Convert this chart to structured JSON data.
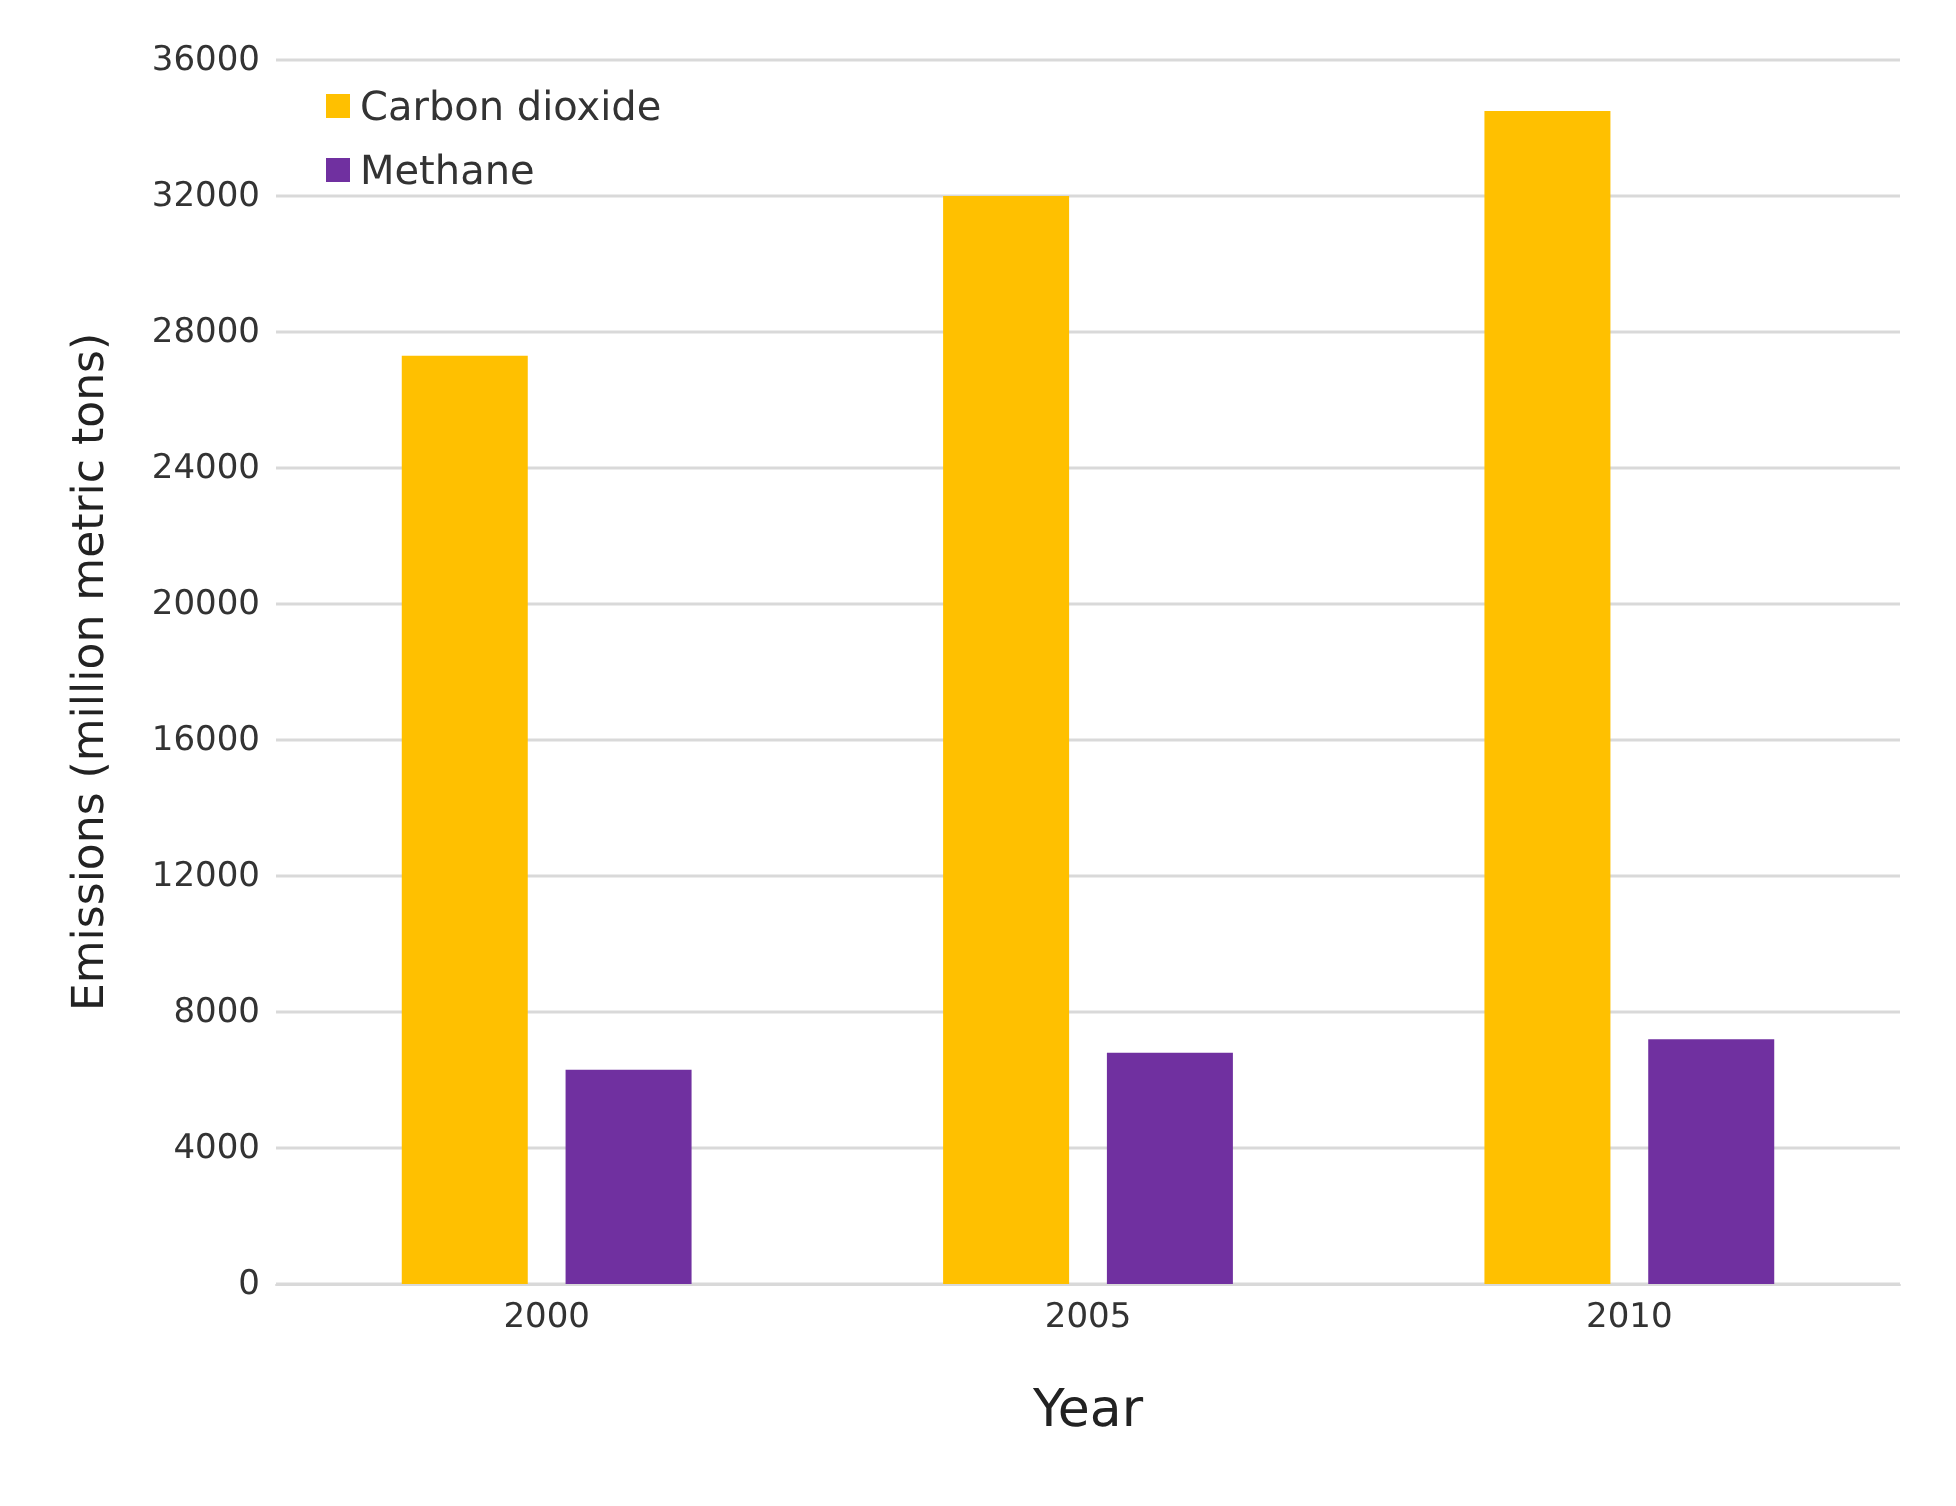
{
  "chart_data": {
    "type": "bar",
    "xlabel": "Year",
    "ylabel": "Emissions (million metric tons)",
    "categories": [
      "2000",
      "2005",
      "2010"
    ],
    "series": [
      {
        "name": "Carbon dioxide",
        "color": "#ffc000",
        "values": [
          27300,
          32000,
          34500
        ]
      },
      {
        "name": "Methane",
        "color": "#7030a0",
        "values": [
          6300,
          6800,
          7200
        ]
      }
    ],
    "ylim": [
      0,
      36000
    ],
    "yticks": [
      0,
      4000,
      8000,
      12000,
      16000,
      20000,
      24000,
      28000,
      32000,
      36000
    ],
    "grid": "y",
    "legend": "top left"
  }
}
